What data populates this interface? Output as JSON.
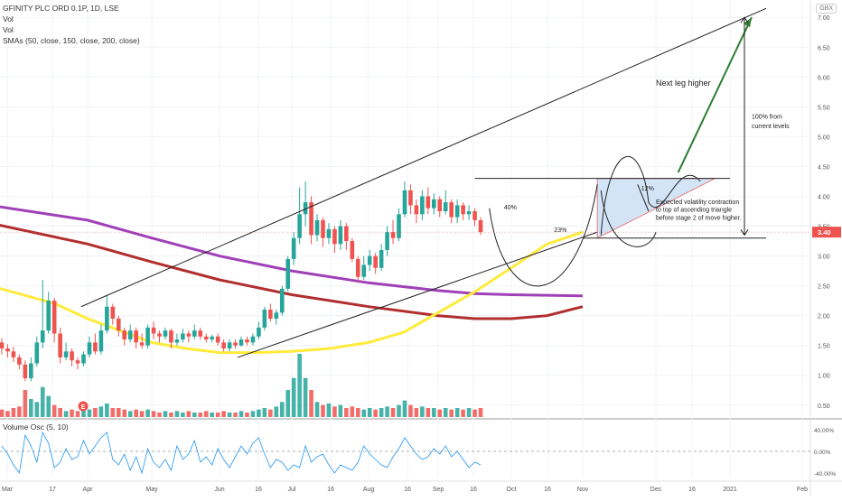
{
  "chart_data": {
    "type": "candlestick",
    "title": "GFINITY PLC ORD 0.1P, 1D, LSE",
    "legend_lines": [
      "Vol",
      "Vol",
      "SMAs (50, close, 150, close, 200, close)"
    ],
    "currency": "GBX",
    "price_axis": {
      "ticks": [
        "7.00",
        "6.50",
        "6.00",
        "5.50",
        "5.00",
        "4.50",
        "4.00",
        "3.50",
        "3.00",
        "2.50",
        "2.00",
        "1.50",
        "1.00",
        "0.50"
      ],
      "ylim": [
        0.3,
        7.2
      ],
      "last_price": "3.40"
    },
    "time_axis": {
      "ticks": [
        "Mar",
        "17",
        "Apr",
        "May",
        "Jun",
        "16",
        "Jul",
        "16",
        "Aug",
        "16",
        "Sep",
        "16",
        "Oct",
        "16",
        "Nov",
        "Dec",
        "16",
        "2021",
        "Feb"
      ]
    },
    "candles": [
      {
        "date": "Mar",
        "open": 1.55,
        "close": 1.45,
        "high": 1.62,
        "low": 1.35
      },
      {
        "date": "Mar",
        "open": 1.45,
        "close": 1.4,
        "high": 1.52,
        "low": 1.3
      },
      {
        "date": "Mar",
        "open": 1.4,
        "close": 1.3,
        "high": 1.48,
        "low": 1.22
      },
      {
        "date": "Mar",
        "open": 1.3,
        "close": 1.18,
        "high": 1.35,
        "low": 1.1
      },
      {
        "date": "17",
        "open": 1.18,
        "close": 0.95,
        "high": 1.25,
        "low": 0.9
      },
      {
        "date": "17",
        "open": 0.95,
        "close": 1.2,
        "high": 1.3,
        "low": 0.9
      },
      {
        "date": "17",
        "open": 1.2,
        "close": 1.55,
        "high": 1.65,
        "low": 1.15
      },
      {
        "date": "17",
        "open": 1.55,
        "close": 1.75,
        "high": 2.6,
        "low": 1.45
      },
      {
        "date": "17",
        "open": 1.75,
        "close": 2.25,
        "high": 2.4,
        "low": 1.7
      },
      {
        "date": "17",
        "open": 2.25,
        "close": 1.7,
        "high": 2.3,
        "low": 1.55
      },
      {
        "date": "Apr",
        "open": 1.7,
        "close": 1.3,
        "high": 1.8,
        "low": 1.2
      },
      {
        "date": "Apr",
        "open": 1.3,
        "close": 1.4,
        "high": 1.55,
        "low": 1.25
      },
      {
        "date": "Apr",
        "open": 1.4,
        "close": 1.25,
        "high": 1.45,
        "low": 1.15
      },
      {
        "date": "Apr",
        "open": 1.25,
        "close": 1.2,
        "high": 1.3,
        "low": 1.1
      },
      {
        "date": "Apr",
        "open": 1.2,
        "close": 1.35,
        "high": 1.4,
        "low": 1.15
      },
      {
        "date": "Apr",
        "open": 1.35,
        "close": 1.55,
        "high": 1.65,
        "low": 1.3
      },
      {
        "date": "Apr",
        "open": 1.55,
        "close": 1.4,
        "high": 1.7,
        "low": 1.35
      },
      {
        "date": "Apr",
        "open": 1.4,
        "close": 1.75,
        "high": 1.85,
        "low": 1.35
      },
      {
        "date": "Apr",
        "open": 1.75,
        "close": 2.15,
        "high": 2.35,
        "low": 1.7
      },
      {
        "date": "Apr",
        "open": 2.15,
        "close": 1.95,
        "high": 2.2,
        "low": 1.85
      },
      {
        "date": "May",
        "open": 1.95,
        "close": 1.75,
        "high": 2.0,
        "low": 1.65
      },
      {
        "date": "May",
        "open": 1.75,
        "close": 1.6,
        "high": 1.8,
        "low": 1.5
      },
      {
        "date": "May",
        "open": 1.6,
        "close": 1.75,
        "high": 1.85,
        "low": 1.55
      },
      {
        "date": "May",
        "open": 1.75,
        "close": 1.55,
        "high": 1.8,
        "low": 1.45
      },
      {
        "date": "May",
        "open": 1.55,
        "close": 1.5,
        "high": 1.7,
        "low": 1.45
      },
      {
        "date": "May",
        "open": 1.5,
        "close": 1.8,
        "high": 1.85,
        "low": 1.45
      },
      {
        "date": "May",
        "open": 1.8,
        "close": 1.7,
        "high": 1.9,
        "low": 1.6
      },
      {
        "date": "May",
        "open": 1.7,
        "close": 1.65,
        "high": 1.75,
        "low": 1.55
      },
      {
        "date": "May",
        "open": 1.65,
        "close": 1.75,
        "high": 1.8,
        "low": 1.6
      },
      {
        "date": "May",
        "open": 1.75,
        "close": 1.55,
        "high": 1.78,
        "low": 1.45
      },
      {
        "date": "May",
        "open": 1.55,
        "close": 1.6,
        "high": 1.7,
        "low": 1.5
      },
      {
        "date": "May",
        "open": 1.6,
        "close": 1.7,
        "high": 1.78,
        "low": 1.55
      },
      {
        "date": "May",
        "open": 1.7,
        "close": 1.65,
        "high": 1.75,
        "low": 1.55
      },
      {
        "date": "Jun",
        "open": 1.65,
        "close": 1.75,
        "high": 1.85,
        "low": 1.6
      },
      {
        "date": "Jun",
        "open": 1.75,
        "close": 1.65,
        "high": 1.8,
        "low": 1.6
      },
      {
        "date": "Jun",
        "open": 1.65,
        "close": 1.6,
        "high": 1.7,
        "low": 1.55
      },
      {
        "date": "Jun",
        "open": 1.6,
        "close": 1.65,
        "high": 1.68,
        "low": 1.55
      },
      {
        "date": "Jun",
        "open": 1.65,
        "close": 1.55,
        "high": 1.7,
        "low": 1.5
      },
      {
        "date": "Jun",
        "open": 1.55,
        "close": 1.45,
        "high": 1.6,
        "low": 1.4
      },
      {
        "date": "16",
        "open": 1.45,
        "close": 1.55,
        "high": 1.6,
        "low": 1.4
      },
      {
        "date": "16",
        "open": 1.55,
        "close": 1.5,
        "high": 1.6,
        "low": 1.45
      },
      {
        "date": "16",
        "open": 1.5,
        "close": 1.6,
        "high": 1.65,
        "low": 1.48
      },
      {
        "date": "16",
        "open": 1.6,
        "close": 1.55,
        "high": 1.65,
        "low": 1.5
      },
      {
        "date": "16",
        "open": 1.55,
        "close": 1.65,
        "high": 1.7,
        "low": 1.5
      },
      {
        "date": "16",
        "open": 1.65,
        "close": 1.8,
        "high": 1.9,
        "low": 1.6
      },
      {
        "date": "Jul",
        "open": 1.8,
        "close": 2.1,
        "high": 2.15,
        "low": 1.75
      },
      {
        "date": "Jul",
        "open": 2.1,
        "close": 1.95,
        "high": 2.2,
        "low": 1.9
      },
      {
        "date": "Jul",
        "open": 1.95,
        "close": 2.05,
        "high": 2.1,
        "low": 1.85
      },
      {
        "date": "Jul",
        "open": 2.05,
        "close": 2.45,
        "high": 2.5,
        "low": 2.0
      },
      {
        "date": "Jul",
        "open": 2.45,
        "close": 2.95,
        "high": 3.0,
        "low": 2.4
      },
      {
        "date": "Jul",
        "open": 2.95,
        "close": 3.3,
        "high": 3.4,
        "low": 2.85
      },
      {
        "date": "Jul",
        "open": 3.3,
        "close": 3.7,
        "high": 4.15,
        "low": 3.2
      },
      {
        "date": "Jul",
        "open": 3.7,
        "close": 3.9,
        "high": 4.25,
        "low": 3.5
      },
      {
        "date": "16",
        "open": 3.9,
        "close": 3.35,
        "high": 4.0,
        "low": 3.2
      },
      {
        "date": "16",
        "open": 3.35,
        "close": 3.6,
        "high": 3.7,
        "low": 3.25
      },
      {
        "date": "16",
        "open": 3.6,
        "close": 3.3,
        "high": 3.65,
        "low": 3.15
      },
      {
        "date": "16",
        "open": 3.3,
        "close": 3.45,
        "high": 3.55,
        "low": 3.2
      },
      {
        "date": "16",
        "open": 3.45,
        "close": 3.2,
        "high": 3.5,
        "low": 3.05
      },
      {
        "date": "16",
        "open": 3.2,
        "close": 3.5,
        "high": 3.6,
        "low": 3.1
      },
      {
        "date": "16",
        "open": 3.5,
        "close": 3.25,
        "high": 3.55,
        "low": 3.1
      },
      {
        "date": "Aug",
        "open": 3.25,
        "close": 2.95,
        "high": 3.3,
        "low": 2.9
      },
      {
        "date": "Aug",
        "open": 2.95,
        "close": 2.65,
        "high": 3.0,
        "low": 2.55
      },
      {
        "date": "Aug",
        "open": 2.65,
        "close": 2.85,
        "high": 3.0,
        "low": 2.6
      },
      {
        "date": "Aug",
        "open": 2.85,
        "close": 3.0,
        "high": 3.1,
        "low": 2.75
      },
      {
        "date": "Aug",
        "open": 3.0,
        "close": 2.8,
        "high": 3.05,
        "low": 2.7
      },
      {
        "date": "Aug",
        "open": 2.8,
        "close": 3.1,
        "high": 3.2,
        "low": 2.75
      },
      {
        "date": "Aug",
        "open": 3.1,
        "close": 3.4,
        "high": 3.5,
        "low": 3.0
      },
      {
        "date": "Aug",
        "open": 3.4,
        "close": 3.3,
        "high": 3.6,
        "low": 3.2
      },
      {
        "date": "Aug",
        "open": 3.3,
        "close": 3.7,
        "high": 3.8,
        "low": 3.25
      },
      {
        "date": "Aug",
        "open": 3.7,
        "close": 4.1,
        "high": 4.25,
        "low": 3.65
      },
      {
        "date": "16",
        "open": 4.1,
        "close": 3.85,
        "high": 4.2,
        "low": 3.7
      },
      {
        "date": "16",
        "open": 3.85,
        "close": 3.7,
        "high": 3.95,
        "low": 3.55
      },
      {
        "date": "16",
        "open": 3.7,
        "close": 4.0,
        "high": 4.1,
        "low": 3.6
      },
      {
        "date": "16",
        "open": 4.0,
        "close": 3.8,
        "high": 4.15,
        "low": 3.7
      },
      {
        "date": "16",
        "open": 3.8,
        "close": 3.95,
        "high": 4.05,
        "low": 3.7
      },
      {
        "date": "16",
        "open": 3.95,
        "close": 3.75,
        "high": 4.0,
        "low": 3.65
      },
      {
        "date": "Sep",
        "open": 3.75,
        "close": 3.9,
        "high": 4.1,
        "low": 3.7
      },
      {
        "date": "Sep",
        "open": 3.9,
        "close": 3.65,
        "high": 3.95,
        "low": 3.55
      },
      {
        "date": "Sep",
        "open": 3.65,
        "close": 3.85,
        "high": 3.95,
        "low": 3.55
      },
      {
        "date": "Sep",
        "open": 3.85,
        "close": 3.7,
        "high": 3.9,
        "low": 3.6
      },
      {
        "date": "Sep",
        "open": 3.7,
        "close": 3.75,
        "high": 3.85,
        "low": 3.6
      },
      {
        "date": "Sep",
        "open": 3.75,
        "close": 3.6,
        "high": 3.8,
        "low": 3.5
      },
      {
        "date": "16",
        "open": 3.6,
        "close": 3.4,
        "high": 3.65,
        "low": 3.35
      }
    ],
    "volume": [
      0.25,
      0.2,
      0.3,
      0.35,
      0.9,
      0.6,
      0.5,
      1.0,
      0.7,
      0.4,
      0.3,
      0.2,
      0.25,
      0.2,
      0.3,
      0.25,
      0.3,
      0.35,
      0.45,
      0.3,
      0.3,
      0.25,
      0.2,
      0.25,
      0.2,
      0.25,
      0.2,
      0.15,
      0.2,
      0.15,
      0.2,
      0.15,
      0.2,
      0.15,
      0.15,
      0.2,
      0.15,
      0.15,
      0.2,
      0.15,
      0.15,
      0.2,
      0.15,
      0.2,
      0.25,
      0.3,
      0.25,
      0.35,
      0.5,
      0.9,
      1.3,
      2.1,
      1.3,
      0.9,
      0.5,
      0.4,
      0.45,
      0.35,
      0.4,
      0.3,
      0.35,
      0.3,
      0.25,
      0.3,
      0.25,
      0.3,
      0.35,
      0.3,
      0.4,
      0.55,
      0.4,
      0.3,
      0.35,
      0.3,
      0.3,
      0.25,
      0.3,
      0.25,
      0.3,
      0.25,
      0.3,
      0.25,
      0.3
    ],
    "sma": {
      "sma50": [
        [
          -0.5,
          2.5
        ],
        [
          0.5,
          2.2
        ],
        [
          1,
          1.95
        ],
        [
          1.5,
          1.75
        ],
        [
          2,
          1.55
        ],
        [
          2.5,
          1.45
        ],
        [
          3,
          1.38
        ],
        [
          3.5,
          1.38
        ],
        [
          4,
          1.4
        ],
        [
          4.5,
          1.45
        ],
        [
          5,
          1.55
        ],
        [
          5.5,
          1.72
        ],
        [
          6,
          2.05
        ],
        [
          6.5,
          2.4
        ],
        [
          7,
          2.8
        ],
        [
          7.5,
          3.2
        ],
        [
          8,
          3.4
        ]
      ],
      "sma150": [
        [
          -0.5,
          3.85
        ],
        [
          1,
          3.6
        ],
        [
          2,
          3.3
        ],
        [
          3,
          3.0
        ],
        [
          4,
          2.75
        ],
        [
          5,
          2.55
        ],
        [
          6,
          2.42
        ],
        [
          6.5,
          2.37
        ],
        [
          7,
          2.35
        ],
        [
          8,
          2.33
        ]
      ],
      "sma200": [
        [
          -0.5,
          3.55
        ],
        [
          1,
          3.2
        ],
        [
          2,
          2.9
        ],
        [
          3,
          2.6
        ],
        [
          4,
          2.35
        ],
        [
          5,
          2.15
        ],
        [
          6,
          2.0
        ],
        [
          6.5,
          1.95
        ],
        [
          7,
          1.95
        ],
        [
          7.5,
          2.0
        ],
        [
          8,
          2.15
        ]
      ]
    },
    "drawings": {
      "channel_upper": [
        [
          0.9,
          2.15
        ],
        [
          10.5,
          7.15
        ]
      ],
      "channel_lower": [
        [
          3.25,
          1.3
        ],
        [
          8.2,
          3.4
        ]
      ],
      "resistance": [
        [
          6.5,
          4.3
        ],
        [
          10,
          4.3
        ]
      ],
      "support": [
        [
          8,
          3.3
        ],
        [
          10.5,
          3.3
        ]
      ],
      "arrow_target": [
        [
          9.3,
          4.4
        ],
        [
          10.3,
          7.0
        ]
      ],
      "measure_arrow": [
        [
          10.2,
          3.35
        ],
        [
          10.2,
          7.0
        ]
      ],
      "triangle": [
        [
          8.2,
          4.3
        ],
        [
          9.8,
          4.3
        ],
        [
          8.2,
          3.3
        ]
      ]
    },
    "annotations": [
      {
        "text": "40%",
        "x": 6.9,
        "y": 3.78
      },
      {
        "text": "23%",
        "x": 7.6,
        "y": 3.4
      },
      {
        "text": "12%",
        "x": 8.8,
        "y": 4.1
      },
      {
        "text": "Next leg higher",
        "x": 9.0,
        "y": 5.85
      },
      {
        "text": "100% from",
        "x": 10.3,
        "y": 5.3
      },
      {
        "text": "current levels",
        "x": 10.3,
        "y": 5.14
      },
      {
        "text": "Expected volatility contraction",
        "x": 9.0,
        "y": 3.87
      },
      {
        "text": "to top of ascending triangle",
        "x": 9.0,
        "y": 3.74
      },
      {
        "text": "before stage 2 of move higher.",
        "x": 9.0,
        "y": 3.61
      }
    ],
    "volume_osc": {
      "label": "Volume Osc (5, 10)",
      "ticks": [
        "40.00%",
        "0.00%",
        "-40.00%"
      ],
      "ylim": [
        -50,
        50
      ],
      "values": [
        10,
        -5,
        -25,
        -40,
        30,
        10,
        -20,
        35,
        15,
        -30,
        -20,
        5,
        -15,
        -10,
        20,
        -5,
        10,
        25,
        35,
        -15,
        -25,
        -5,
        -35,
        -10,
        -40,
        5,
        -20,
        -30,
        -15,
        -35,
        10,
        -15,
        -5,
        20,
        -20,
        -10,
        -25,
        5,
        -15,
        -30,
        -10,
        10,
        -5,
        15,
        25,
        -5,
        -30,
        -15,
        -20,
        -35,
        -25,
        -30,
        10,
        -20,
        -10,
        -5,
        -25,
        -40,
        -25,
        -30,
        -35,
        -20,
        10,
        -5,
        -15,
        -25,
        -30,
        -10,
        5,
        25,
        10,
        -5,
        -15,
        -10,
        5,
        -5,
        10,
        -10,
        0,
        -15,
        -30,
        -20,
        -25
      ]
    }
  }
}
